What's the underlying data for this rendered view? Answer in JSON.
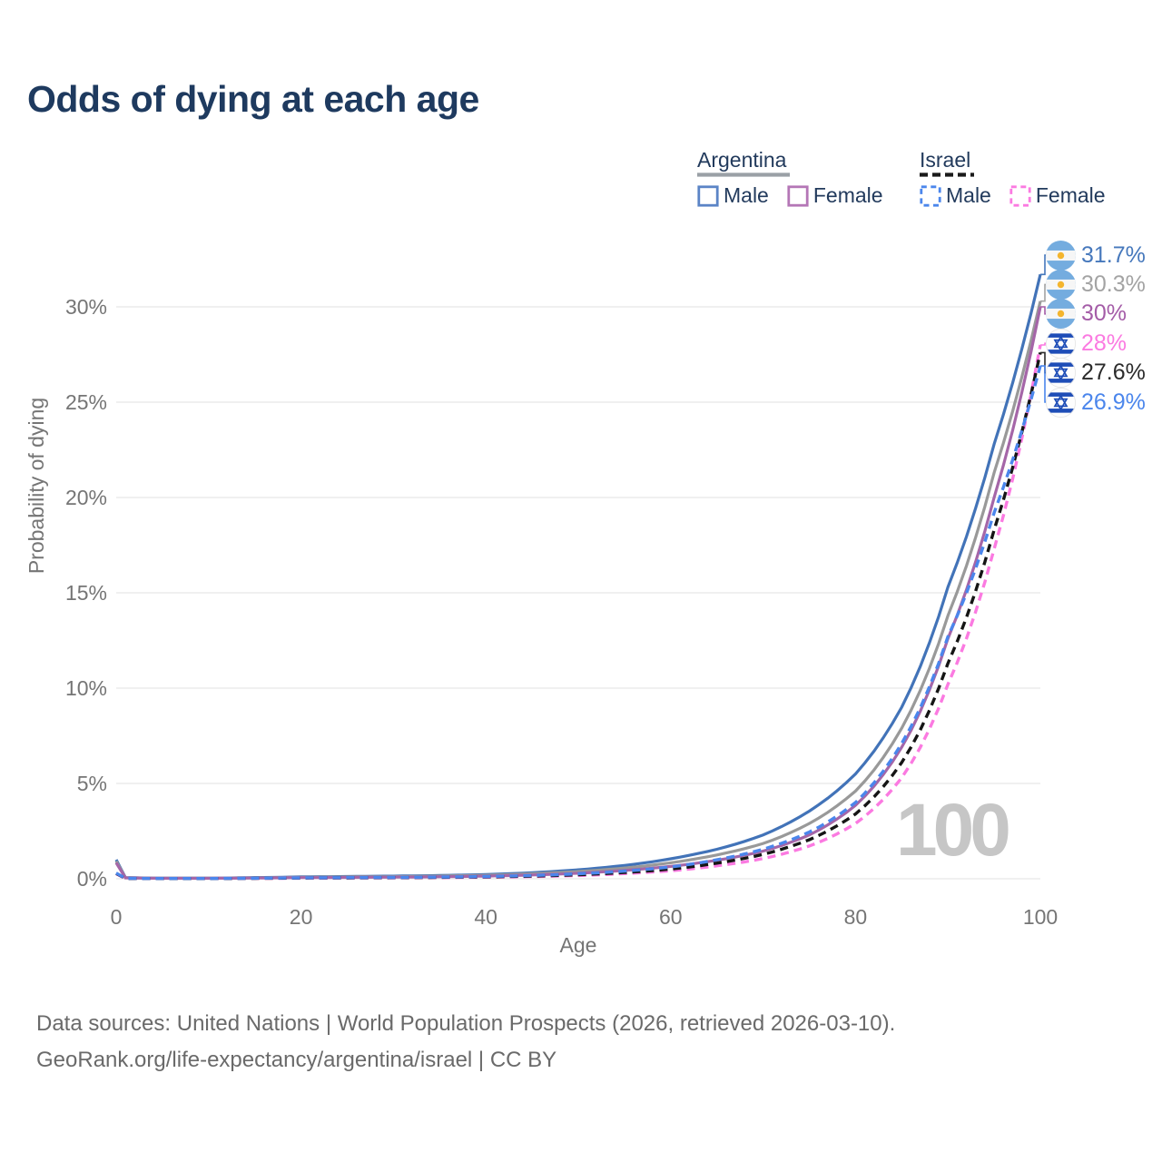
{
  "title": "Odds of dying at each age",
  "legend": {
    "groups": [
      {
        "country": "Argentina",
        "underline_color": "#9aa0a6",
        "underline_dashed": false,
        "items": [
          {
            "label": "Male",
            "color": "#5b84c6",
            "dashed": false
          },
          {
            "label": "Female",
            "color": "#b476b6",
            "dashed": false
          }
        ]
      },
      {
        "country": "Israel",
        "underline_color": "#1a1a1a",
        "underline_dashed": true,
        "items": [
          {
            "label": "Male",
            "color": "#4b86ec",
            "dashed": true
          },
          {
            "label": "Female",
            "color": "#fb7ae1",
            "dashed": true
          }
        ]
      }
    ]
  },
  "chart_data": {
    "type": "line",
    "title": "Odds of dying at each age",
    "xlabel": "Age",
    "ylabel": "Probability of dying",
    "xlim": [
      0,
      100
    ],
    "ylim_percent": [
      0,
      33
    ],
    "grid": "horizontal",
    "x_ticks": [
      0,
      20,
      40,
      60,
      80,
      100
    ],
    "x_tick_labels": [
      "0",
      "20",
      "40",
      "60",
      "80",
      "100"
    ],
    "y_ticks": [
      0,
      5,
      10,
      15,
      20,
      25,
      30
    ],
    "y_tick_labels": [
      "0%",
      "5%",
      "10%",
      "15%",
      "20%",
      "25%",
      "30%"
    ],
    "watermark": "100",
    "series": [
      {
        "name": "Argentina Male",
        "country": "Argentina",
        "sex": "Male",
        "style": "solid",
        "color": "#4273b8",
        "end_label": "31.7%",
        "end_value": 31.7,
        "points": [
          [
            0,
            1.0
          ],
          [
            1,
            0.06
          ],
          [
            5,
            0.03
          ],
          [
            10,
            0.03
          ],
          [
            15,
            0.06
          ],
          [
            20,
            0.1
          ],
          [
            25,
            0.12
          ],
          [
            30,
            0.14
          ],
          [
            35,
            0.17
          ],
          [
            40,
            0.22
          ],
          [
            45,
            0.32
          ],
          [
            50,
            0.47
          ],
          [
            55,
            0.7
          ],
          [
            60,
            1.05
          ],
          [
            65,
            1.55
          ],
          [
            70,
            2.3
          ],
          [
            75,
            3.55
          ],
          [
            80,
            5.5
          ],
          [
            85,
            9.0
          ],
          [
            90,
            15.3
          ],
          [
            95,
            22.8
          ],
          [
            100,
            31.7
          ]
        ]
      },
      {
        "name": "Argentina",
        "country": "Argentina",
        "sex": "Both",
        "style": "solid",
        "color": "#999999",
        "end_label": "30.3%",
        "end_value": 30.3,
        "points": [
          [
            0,
            0.92
          ],
          [
            1,
            0.055
          ],
          [
            5,
            0.027
          ],
          [
            10,
            0.027
          ],
          [
            15,
            0.05
          ],
          [
            20,
            0.08
          ],
          [
            25,
            0.095
          ],
          [
            30,
            0.11
          ],
          [
            35,
            0.14
          ],
          [
            40,
            0.18
          ],
          [
            45,
            0.26
          ],
          [
            50,
            0.38
          ],
          [
            55,
            0.56
          ],
          [
            60,
            0.84
          ],
          [
            65,
            1.25
          ],
          [
            70,
            1.85
          ],
          [
            75,
            2.9
          ],
          [
            80,
            4.6
          ],
          [
            85,
            7.9
          ],
          [
            90,
            13.8
          ],
          [
            95,
            21.3
          ],
          [
            100,
            30.3
          ]
        ]
      },
      {
        "name": "Argentina Female",
        "country": "Argentina",
        "sex": "Female",
        "style": "solid",
        "color": "#a566a8",
        "end_label": "30%",
        "end_value": 30.0,
        "points": [
          [
            0,
            0.84
          ],
          [
            1,
            0.05
          ],
          [
            5,
            0.025
          ],
          [
            10,
            0.025
          ],
          [
            15,
            0.04
          ],
          [
            20,
            0.06
          ],
          [
            25,
            0.07
          ],
          [
            30,
            0.085
          ],
          [
            35,
            0.105
          ],
          [
            40,
            0.14
          ],
          [
            45,
            0.2
          ],
          [
            50,
            0.29
          ],
          [
            55,
            0.44
          ],
          [
            60,
            0.65
          ],
          [
            65,
            0.97
          ],
          [
            70,
            1.45
          ],
          [
            75,
            2.3
          ],
          [
            80,
            3.85
          ],
          [
            85,
            6.9
          ],
          [
            90,
            12.6
          ],
          [
            95,
            20.0
          ],
          [
            100,
            30.0
          ]
        ]
      },
      {
        "name": "Israel Female",
        "country": "Israel",
        "sex": "Female",
        "style": "dashed",
        "color": "#fb7ae1",
        "end_label": "28%",
        "end_value": 28.0,
        "points": [
          [
            0,
            0.26
          ],
          [
            1,
            0.016
          ],
          [
            5,
            0.01
          ],
          [
            10,
            0.01
          ],
          [
            15,
            0.02
          ],
          [
            20,
            0.03
          ],
          [
            25,
            0.04
          ],
          [
            30,
            0.05
          ],
          [
            35,
            0.06
          ],
          [
            40,
            0.08
          ],
          [
            45,
            0.115
          ],
          [
            50,
            0.17
          ],
          [
            55,
            0.27
          ],
          [
            60,
            0.42
          ],
          [
            65,
            0.68
          ],
          [
            70,
            1.06
          ],
          [
            75,
            1.72
          ],
          [
            80,
            2.9
          ],
          [
            85,
            5.3
          ],
          [
            90,
            10.2
          ],
          [
            95,
            17.3
          ],
          [
            100,
            28.0
          ]
        ]
      },
      {
        "name": "Israel",
        "country": "Israel",
        "sex": "Both",
        "style": "dashed",
        "color": "#151515",
        "end_label": "27.6%",
        "end_value": 27.6,
        "points": [
          [
            0,
            0.28
          ],
          [
            1,
            0.018
          ],
          [
            5,
            0.011
          ],
          [
            10,
            0.011
          ],
          [
            15,
            0.025
          ],
          [
            20,
            0.04
          ],
          [
            25,
            0.05
          ],
          [
            30,
            0.06
          ],
          [
            35,
            0.075
          ],
          [
            40,
            0.1
          ],
          [
            45,
            0.14
          ],
          [
            50,
            0.21
          ],
          [
            55,
            0.33
          ],
          [
            60,
            0.51
          ],
          [
            65,
            0.82
          ],
          [
            70,
            1.28
          ],
          [
            75,
            2.05
          ],
          [
            80,
            3.4
          ],
          [
            85,
            6.1
          ],
          [
            90,
            11.3
          ],
          [
            95,
            18.3
          ],
          [
            100,
            27.6
          ]
        ]
      },
      {
        "name": "Israel Male",
        "country": "Israel",
        "sex": "Male",
        "style": "dashed",
        "color": "#4b86ec",
        "end_label": "26.9%",
        "end_value": 26.9,
        "points": [
          [
            0,
            0.3
          ],
          [
            1,
            0.02
          ],
          [
            5,
            0.012
          ],
          [
            10,
            0.012
          ],
          [
            15,
            0.03
          ],
          [
            20,
            0.05
          ],
          [
            25,
            0.06
          ],
          [
            30,
            0.07
          ],
          [
            35,
            0.09
          ],
          [
            40,
            0.12
          ],
          [
            45,
            0.17
          ],
          [
            50,
            0.26
          ],
          [
            55,
            0.4
          ],
          [
            60,
            0.62
          ],
          [
            65,
            1.0
          ],
          [
            70,
            1.55
          ],
          [
            75,
            2.45
          ],
          [
            80,
            4.0
          ],
          [
            85,
            7.1
          ],
          [
            90,
            12.7
          ],
          [
            95,
            19.2
          ],
          [
            100,
            26.9
          ]
        ]
      }
    ],
    "end_annotations": [
      {
        "flag": "argentina",
        "text": "31.7%",
        "color": "#4678bc",
        "value": 31.7
      },
      {
        "flag": "argentina",
        "text": "30.3%",
        "color": "#a3a3a3",
        "value": 30.3
      },
      {
        "flag": "argentina",
        "text": "30%",
        "color": "#a45ca7",
        "value": 30.0
      },
      {
        "flag": "israel",
        "text": "28%",
        "color": "#fb7ae1",
        "value": 28.0
      },
      {
        "flag": "israel",
        "text": "27.6%",
        "color": "#2b2b2b",
        "value": 27.6
      },
      {
        "flag": "israel",
        "text": "26.9%",
        "color": "#4b86ec",
        "value": 26.9
      }
    ]
  },
  "flags": {
    "argentina": {
      "band": "#74ACDF",
      "white": "#f6f6f6",
      "sun": "#F4B52E"
    },
    "israel": {
      "blue": "#1e4db7",
      "white": "#fdfdfd",
      "edge": "#e4e4e4"
    }
  },
  "colors": {
    "grid": "#ececec",
    "tick_text": "#757575",
    "title_text": "#1e3a5f",
    "watermark_text": "#c6c6c6",
    "footer_text": "#6a6a6a"
  },
  "footer": {
    "line1": "Data sources: United Nations | World Population Prospects (2026, retrieved 2026-03-10).",
    "line2": "GeoRank.org/life-expectancy/argentina/israel | CC BY"
  }
}
